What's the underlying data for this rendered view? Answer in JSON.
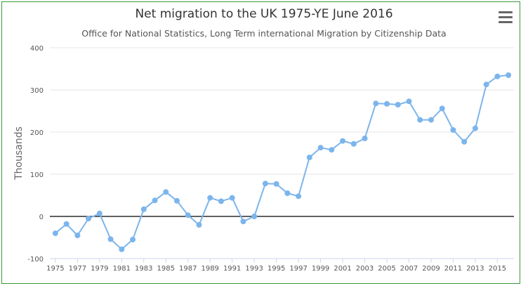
{
  "chart_data": {
    "type": "line",
    "title": "Net migration to the UK 1975-YE June 2016",
    "subtitle": "Office for National Statistics, Long Term international Migration by Citizenship Data",
    "xlabel": "",
    "ylabel": "Thousands",
    "ylim": [
      -100,
      400
    ],
    "yticks": [
      -100,
      0,
      100,
      200,
      300,
      400
    ],
    "xlim": [
      1974.5,
      2016.5
    ],
    "xticks": [
      1975,
      1977,
      1979,
      1981,
      1983,
      1985,
      1987,
      1989,
      1991,
      1993,
      1995,
      1997,
      1999,
      2001,
      2003,
      2005,
      2007,
      2009,
      2011,
      2013,
      2015
    ],
    "grid": "horizontal",
    "zero_line": true,
    "color": "#7cb5ec",
    "x": [
      1975,
      1976,
      1977,
      1978,
      1979,
      1980,
      1981,
      1982,
      1983,
      1984,
      1985,
      1986,
      1987,
      1988,
      1989,
      1990,
      1991,
      1992,
      1993,
      1994,
      1995,
      1996,
      1997,
      1998,
      1999,
      2000,
      2001,
      2002,
      2003,
      2004,
      2005,
      2006,
      2007,
      2008,
      2009,
      2010,
      2011,
      2012,
      2013,
      2014,
      2015,
      2016
    ],
    "y": [
      -40,
      -18,
      -45,
      -5,
      7,
      -54,
      -78,
      -55,
      17,
      38,
      58,
      37,
      3,
      -20,
      44,
      36,
      44,
      -12,
      0,
      78,
      77,
      55,
      48,
      140,
      163,
      158,
      179,
      172,
      185,
      268,
      267,
      265,
      273,
      229,
      229,
      256,
      205,
      177,
      209,
      313,
      332,
      335
    ]
  }
}
